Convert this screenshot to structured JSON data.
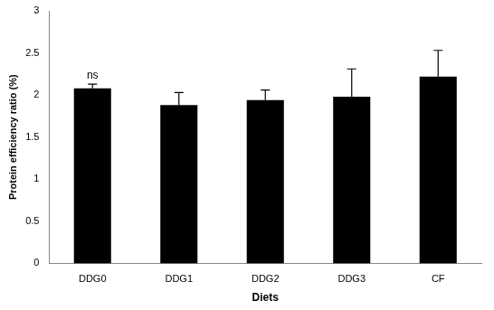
{
  "chart_data": {
    "type": "bar",
    "x_label": "Diets",
    "y_label": "Protein efficiency ratio (%)",
    "categories": [
      "DDG0",
      "DDG1",
      "DDG2",
      "DDG3",
      "CF"
    ],
    "values": [
      2.08,
      1.88,
      1.94,
      1.98,
      2.22
    ],
    "errors": [
      0.05,
      0.15,
      0.12,
      0.33,
      0.31
    ],
    "color": "#000000",
    "ylim": [
      0,
      3
    ],
    "yticks": [
      0,
      0.5,
      1,
      1.5,
      2,
      2.5,
      3
    ],
    "grid": false,
    "annotations": [
      {
        "text": "ns",
        "category": "DDG0"
      }
    ]
  }
}
